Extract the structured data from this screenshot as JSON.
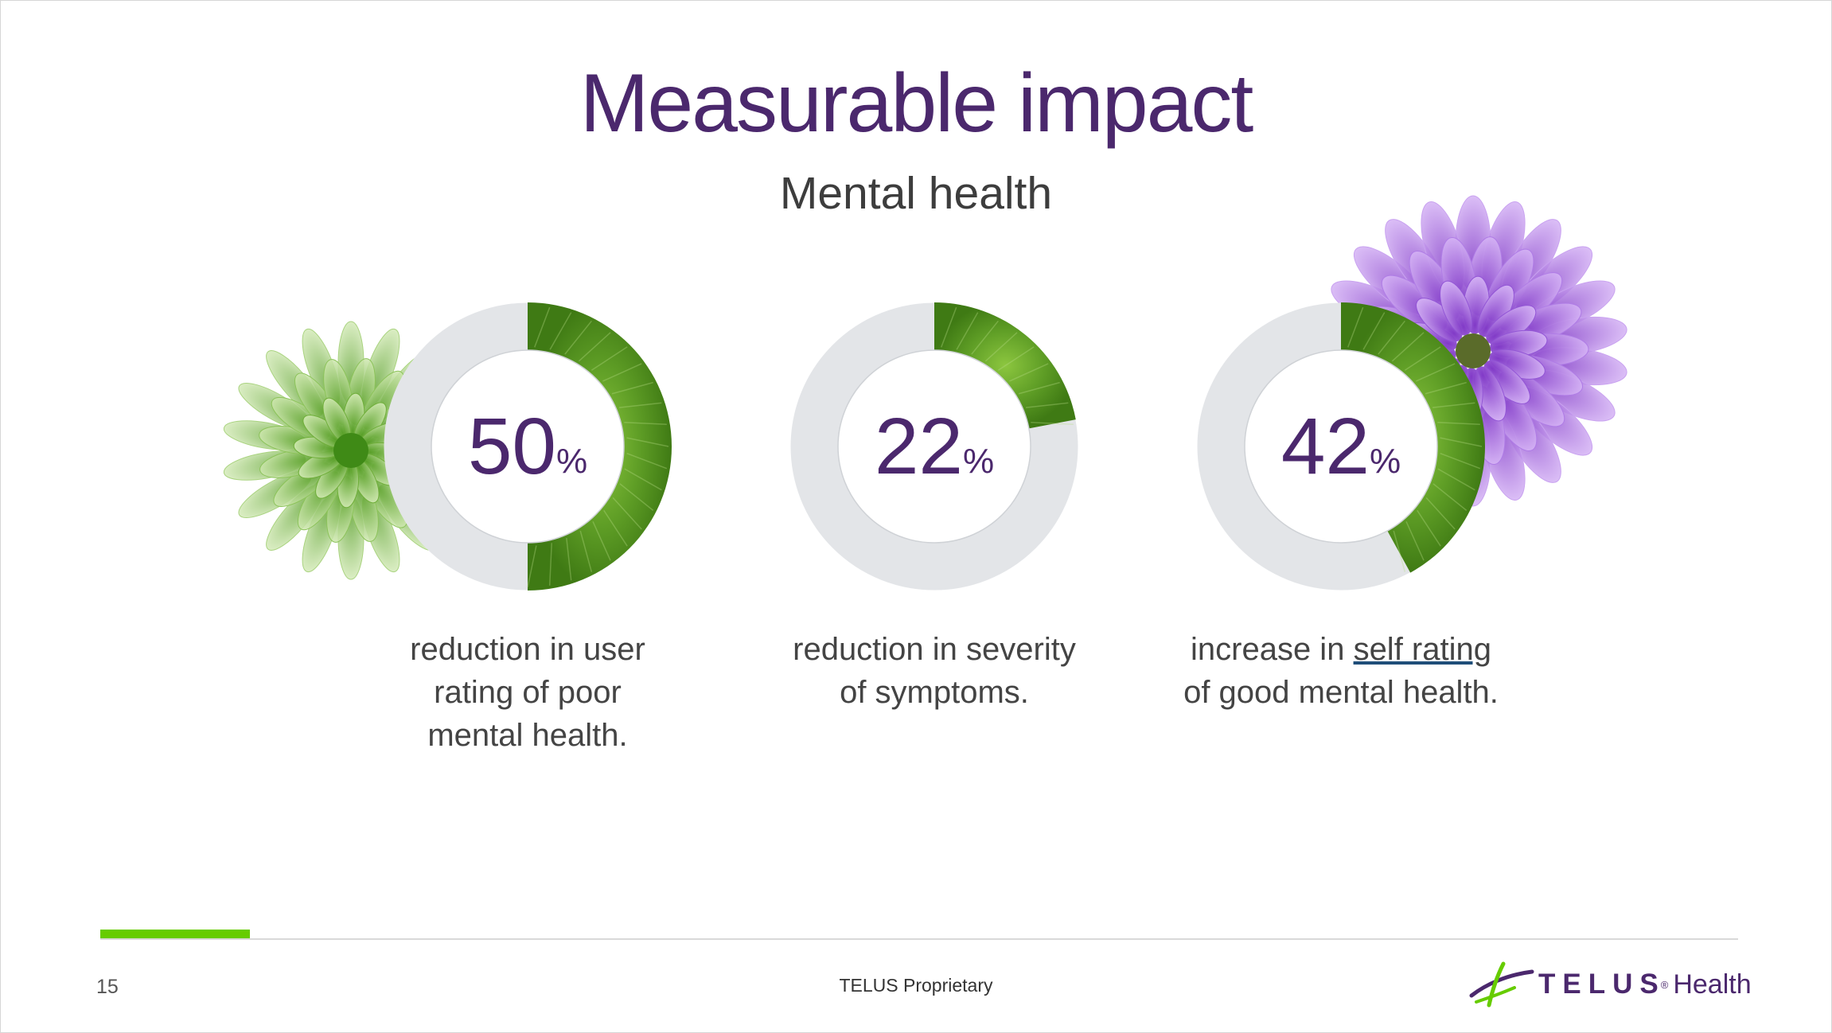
{
  "slide": {
    "title": "Measurable impact",
    "subtitle": "Mental health",
    "page_number": "15",
    "footer_text": "TELUS Proprietary",
    "brand": {
      "name": "TELUS",
      "registered": "®",
      "product": "Health"
    }
  },
  "colors": {
    "title": "#4b286d",
    "ring_track": "#e3e5e8",
    "ring_fill": "#5a9b21",
    "accent": "#66cc00"
  },
  "chart_data": [
    {
      "type": "pie",
      "variant": "donut",
      "value": 50,
      "value_label": "50",
      "unit": "%",
      "caption_lines": [
        "reduction in user",
        "rating of poor",
        "mental health."
      ],
      "decoration": "green-chrysanthemum"
    },
    {
      "type": "pie",
      "variant": "donut",
      "value": 22,
      "value_label": "22",
      "unit": "%",
      "caption_lines": [
        "reduction in severity",
        "of symptoms."
      ],
      "decoration": "none"
    },
    {
      "type": "pie",
      "variant": "donut",
      "value": 42,
      "value_label": "42",
      "unit": "%",
      "caption_lines": [
        "increase in ",
        "self rating",
        "of good mental health."
      ],
      "decoration": "purple-dahlia"
    }
  ]
}
